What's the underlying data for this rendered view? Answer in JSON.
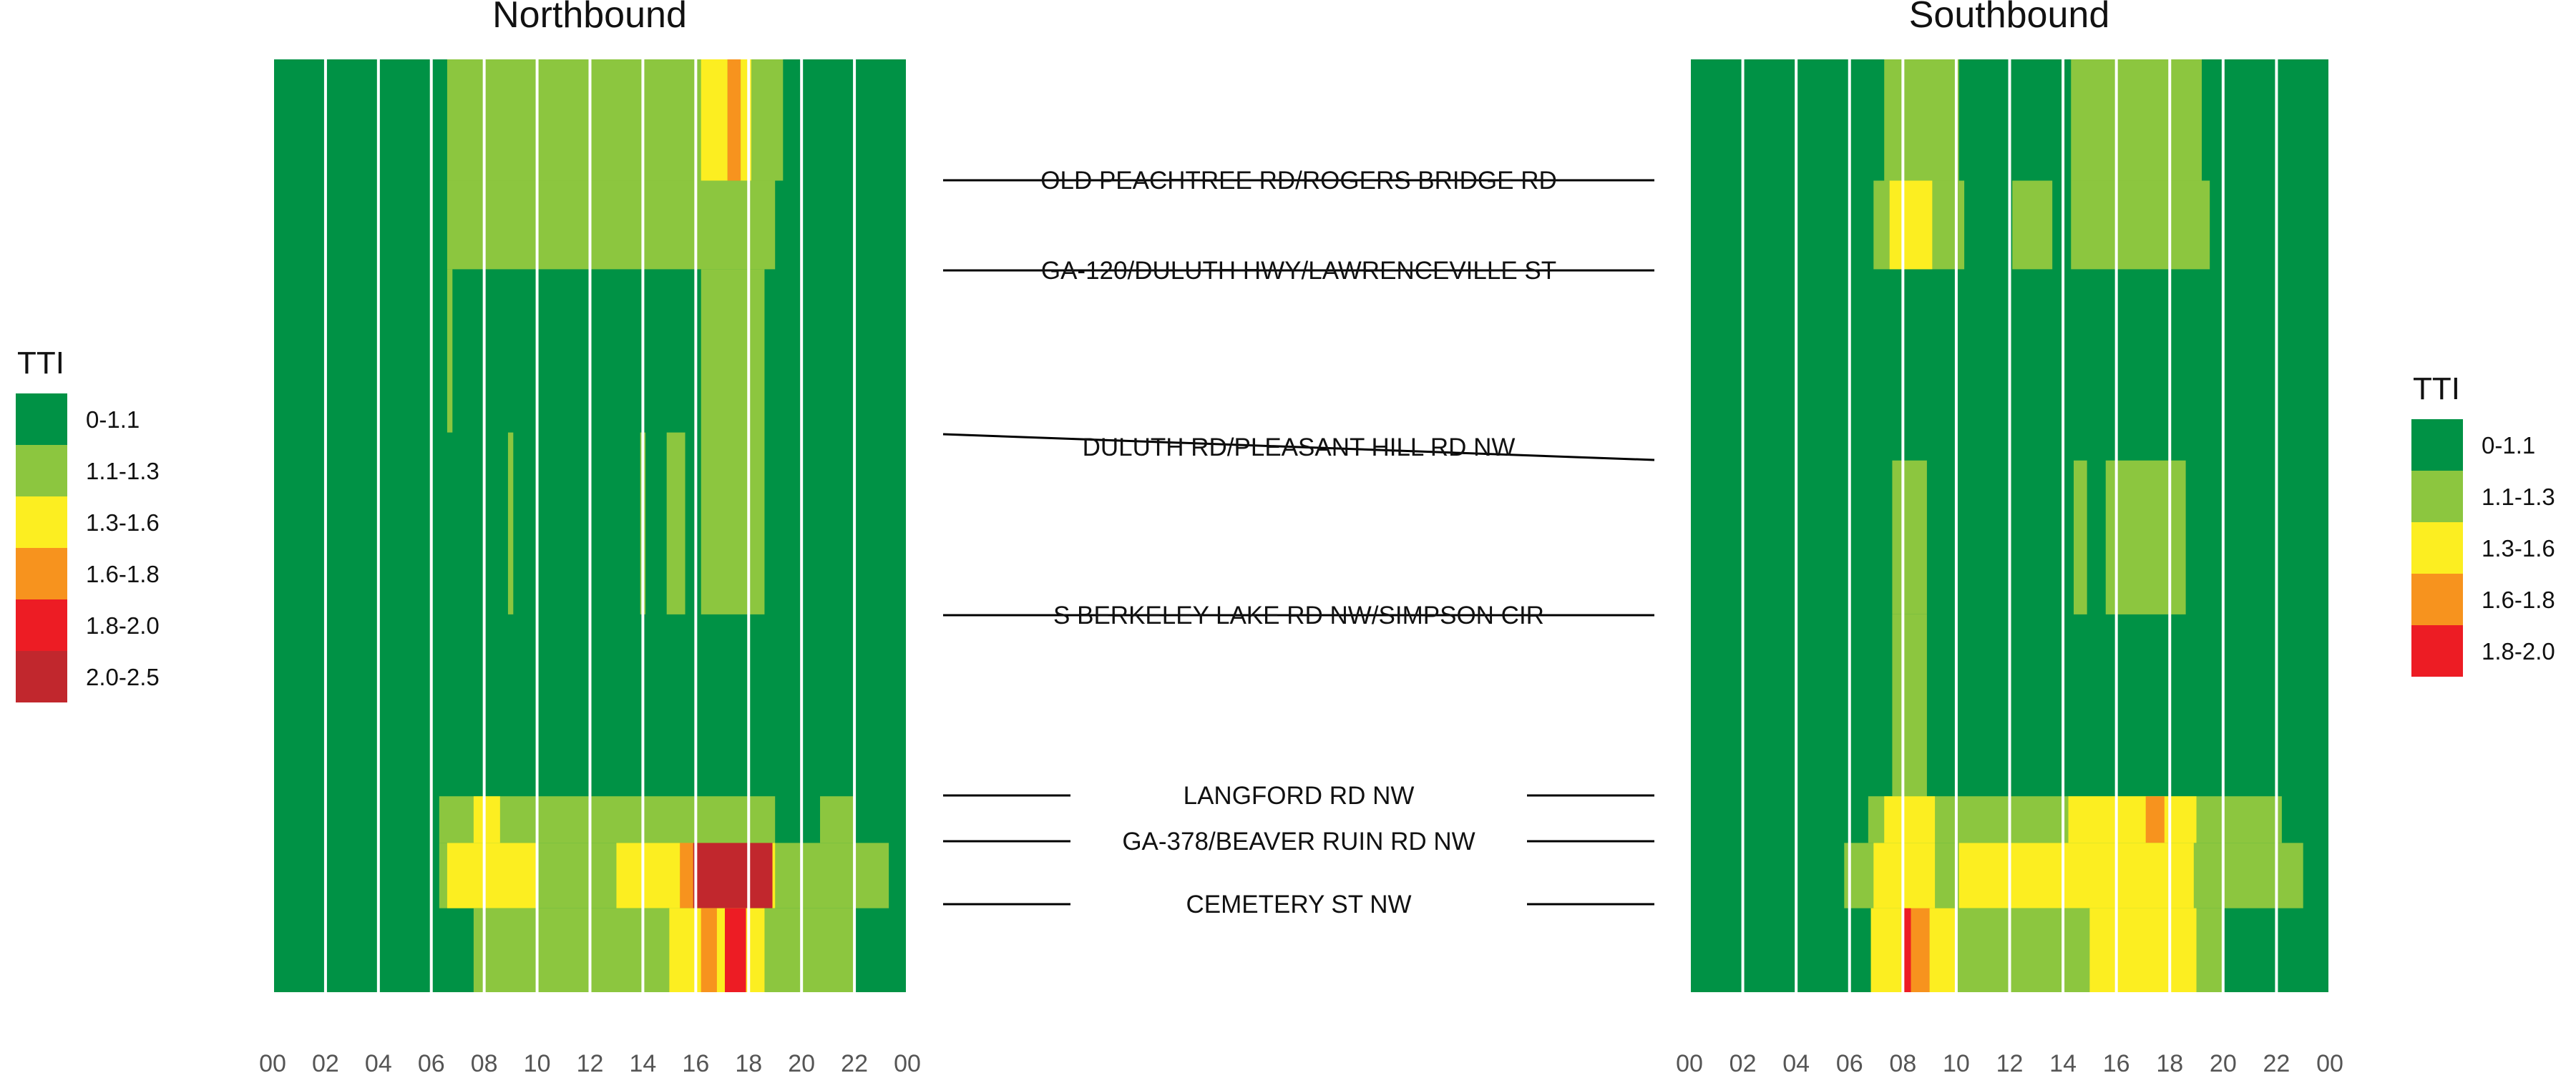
{
  "chart_data": {
    "type": "heatmap",
    "metric": "TTI",
    "x_ticks": [
      "00",
      "02",
      "04",
      "06",
      "08",
      "10",
      "12",
      "14",
      "16",
      "18",
      "20",
      "22",
      "00"
    ],
    "x_range": [
      0,
      24
    ],
    "panels": [
      {
        "title": "Northbound",
        "cells": [
          {
            "x0": 6.6,
            "x1": 19.3,
            "y0": 0.0,
            "y1": 0.13,
            "v": "1.1-1.3"
          },
          {
            "x0": 16.2,
            "x1": 17.2,
            "y0": 0.0,
            "y1": 0.13,
            "v": "1.3-1.6"
          },
          {
            "x0": 17.2,
            "x1": 17.7,
            "y0": 0.0,
            "y1": 0.13,
            "v": "1.6-1.8"
          },
          {
            "x0": 17.7,
            "x1": 18.1,
            "y0": 0.0,
            "y1": 0.13,
            "v": "1.3-1.6"
          },
          {
            "x0": 6.6,
            "x1": 19.0,
            "y0": 0.13,
            "y1": 0.225,
            "v": "1.1-1.3"
          },
          {
            "x0": 6.6,
            "x1": 6.8,
            "y0": 0.225,
            "y1": 0.4,
            "v": "1.1-1.3"
          },
          {
            "x0": 16.2,
            "x1": 18.6,
            "y0": 0.225,
            "y1": 0.595,
            "v": "1.1-1.3"
          },
          {
            "x0": 8.9,
            "x1": 9.1,
            "y0": 0.4,
            "y1": 0.595,
            "v": "1.1-1.3"
          },
          {
            "x0": 13.9,
            "x1": 14.1,
            "y0": 0.4,
            "y1": 0.595,
            "v": "1.1-1.3"
          },
          {
            "x0": 14.9,
            "x1": 15.6,
            "y0": 0.4,
            "y1": 0.595,
            "v": "1.1-1.3"
          },
          {
            "x0": 6.3,
            "x1": 19.0,
            "y0": 0.79,
            "y1": 0.84,
            "v": "1.1-1.3"
          },
          {
            "x0": 20.7,
            "x1": 22.0,
            "y0": 0.79,
            "y1": 0.84,
            "v": "1.1-1.3"
          },
          {
            "x0": 7.6,
            "x1": 8.6,
            "y0": 0.79,
            "y1": 0.84,
            "v": "1.3-1.6"
          },
          {
            "x0": 6.3,
            "x1": 23.3,
            "y0": 0.84,
            "y1": 0.91,
            "v": "1.1-1.3"
          },
          {
            "x0": 6.6,
            "x1": 10.0,
            "y0": 0.84,
            "y1": 0.91,
            "v": "1.3-1.6"
          },
          {
            "x0": 13.0,
            "x1": 19.0,
            "y0": 0.84,
            "y1": 0.91,
            "v": "1.3-1.6"
          },
          {
            "x0": 15.4,
            "x1": 15.9,
            "y0": 0.84,
            "y1": 0.91,
            "v": "1.6-1.8"
          },
          {
            "x0": 15.9,
            "x1": 18.9,
            "y0": 0.84,
            "y1": 0.91,
            "v": "2.0-2.5"
          },
          {
            "x0": 7.6,
            "x1": 22.0,
            "y0": 0.91,
            "y1": 1.0,
            "v": "1.1-1.3"
          },
          {
            "x0": 15.0,
            "x1": 18.6,
            "y0": 0.91,
            "y1": 1.0,
            "v": "1.3-1.6"
          },
          {
            "x0": 16.2,
            "x1": 16.8,
            "y0": 0.91,
            "y1": 1.0,
            "v": "1.6-1.8"
          },
          {
            "x0": 17.1,
            "x1": 17.9,
            "y0": 0.91,
            "y1": 1.0,
            "v": "1.8-2.0"
          }
        ]
      },
      {
        "title": "Southbound",
        "cells": [
          {
            "x0": 7.3,
            "x1": 10.1,
            "y0": 0.0,
            "y1": 0.13,
            "v": "1.1-1.3"
          },
          {
            "x0": 14.3,
            "x1": 19.2,
            "y0": 0.0,
            "y1": 0.13,
            "v": "1.1-1.3"
          },
          {
            "x0": 6.9,
            "x1": 10.3,
            "y0": 0.13,
            "y1": 0.225,
            "v": "1.1-1.3"
          },
          {
            "x0": 7.5,
            "x1": 9.1,
            "y0": 0.13,
            "y1": 0.225,
            "v": "1.3-1.6"
          },
          {
            "x0": 12.1,
            "x1": 13.6,
            "y0": 0.13,
            "y1": 0.225,
            "v": "1.1-1.3"
          },
          {
            "x0": 14.3,
            "x1": 19.5,
            "y0": 0.13,
            "y1": 0.225,
            "v": "1.1-1.3"
          },
          {
            "x0": 7.6,
            "x1": 8.9,
            "y0": 0.43,
            "y1": 0.595,
            "v": "1.1-1.3"
          },
          {
            "x0": 14.4,
            "x1": 14.9,
            "y0": 0.43,
            "y1": 0.595,
            "v": "1.1-1.3"
          },
          {
            "x0": 15.6,
            "x1": 18.6,
            "y0": 0.43,
            "y1": 0.595,
            "v": "1.1-1.3"
          },
          {
            "x0": 7.6,
            "x1": 8.9,
            "y0": 0.595,
            "y1": 0.79,
            "v": "1.1-1.3"
          },
          {
            "x0": 6.7,
            "x1": 22.2,
            "y0": 0.79,
            "y1": 0.84,
            "v": "1.1-1.3"
          },
          {
            "x0": 7.3,
            "x1": 9.2,
            "y0": 0.79,
            "y1": 0.84,
            "v": "1.3-1.6"
          },
          {
            "x0": 14.2,
            "x1": 19.0,
            "y0": 0.79,
            "y1": 0.84,
            "v": "1.3-1.6"
          },
          {
            "x0": 17.1,
            "x1": 17.8,
            "y0": 0.79,
            "y1": 0.84,
            "v": "1.6-1.8"
          },
          {
            "x0": 5.8,
            "x1": 23.0,
            "y0": 0.84,
            "y1": 0.91,
            "v": "1.1-1.3"
          },
          {
            "x0": 6.9,
            "x1": 9.2,
            "y0": 0.84,
            "y1": 0.91,
            "v": "1.3-1.6"
          },
          {
            "x0": 10.1,
            "x1": 18.9,
            "y0": 0.84,
            "y1": 0.91,
            "v": "1.3-1.6"
          },
          {
            "x0": 6.8,
            "x1": 20.0,
            "y0": 0.91,
            "y1": 1.0,
            "v": "1.1-1.3"
          },
          {
            "x0": 6.8,
            "x1": 10.0,
            "y0": 0.91,
            "y1": 1.0,
            "v": "1.3-1.6"
          },
          {
            "x0": 15.0,
            "x1": 19.0,
            "y0": 0.91,
            "y1": 1.0,
            "v": "1.3-1.6"
          },
          {
            "x0": 8.3,
            "x1": 9.0,
            "y0": 0.91,
            "y1": 1.0,
            "v": "1.6-1.8"
          },
          {
            "x0": 8.0,
            "x1": 8.3,
            "y0": 0.91,
            "y1": 1.0,
            "v": "1.8-2.0"
          }
        ]
      }
    ],
    "roads": [
      {
        "label": "OLD PEACHTREE RD/ROGERS BRIDGE RD",
        "style": "through"
      },
      {
        "label": "GA-120/DULUTH HWY/LAWRENCEVILLE ST",
        "style": "through"
      },
      {
        "label": "DULUTH RD/PLEASANT HILL RD NW",
        "style": "slanted"
      },
      {
        "label": "S BERKELEY LAKE RD NW/SIMPSON CIR",
        "style": "through"
      },
      {
        "label": "LANGFORD RD NW",
        "style": "split"
      },
      {
        "label": "GA-378/BEAVER RUIN RD NW",
        "style": "split"
      },
      {
        "label": "CEMETERY ST NW",
        "style": "split"
      }
    ],
    "legends": [
      {
        "title": "TTI",
        "items": [
          "0-1.1",
          "1.1-1.3",
          "1.3-1.6",
          "1.6-1.8",
          "1.8-2.0",
          "2.0-2.5"
        ]
      },
      {
        "title": "TTI",
        "items": [
          "0-1.1",
          "1.1-1.3",
          "1.3-1.6",
          "1.6-1.8",
          "1.8-2.0"
        ]
      }
    ],
    "colors": {
      "0-1.1": "#009245",
      "1.1-1.3": "#8cc63f",
      "1.3-1.6": "#fcee21",
      "1.6-1.8": "#f7931e",
      "1.8-2.0": "#ed1c24",
      "2.0-2.5": "#c1272d"
    },
    "grid_lines": "white vertical lines every 2 hours"
  }
}
